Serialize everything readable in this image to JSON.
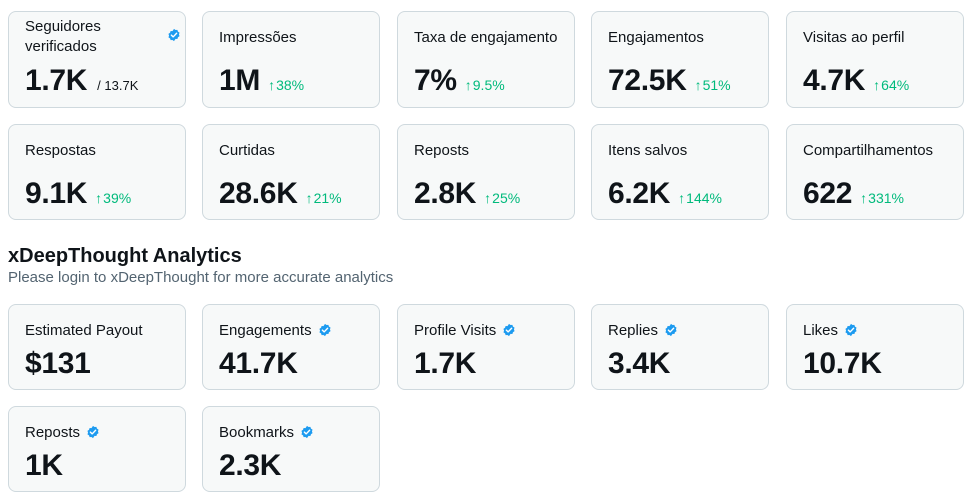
{
  "metrics_row1": [
    {
      "label": "Seguidores verificados",
      "value": "1.7K",
      "total": "/ 13.7K"
    },
    {
      "label": "Impressões",
      "value": "1M",
      "delta": "38%"
    },
    {
      "label": "Taxa de engajamento",
      "value": "7%",
      "delta": "9.5%"
    },
    {
      "label": "Engajamentos",
      "value": "72.5K",
      "delta": "51%"
    },
    {
      "label": "Visitas ao perfil",
      "value": "4.7K",
      "delta": "64%"
    }
  ],
  "metrics_row2": [
    {
      "label": "Respostas",
      "value": "9.1K",
      "delta": "39%"
    },
    {
      "label": "Curtidas",
      "value": "28.6K",
      "delta": "21%"
    },
    {
      "label": "Reposts",
      "value": "2.8K",
      "delta": "25%"
    },
    {
      "label": "Itens salvos",
      "value": "6.2K",
      "delta": "144%"
    },
    {
      "label": "Compartilhamentos",
      "value": "622",
      "delta": "331%"
    }
  ],
  "section": {
    "title": "xDeepThought Analytics",
    "subtitle": "Please login to xDeepThought for more accurate analytics"
  },
  "metrics_row3": [
    {
      "label": "Estimated Payout",
      "value": "$131"
    },
    {
      "label": "Engagements",
      "value": "41.7K"
    },
    {
      "label": "Profile Visits",
      "value": "1.7K"
    },
    {
      "label": "Replies",
      "value": "3.4K"
    },
    {
      "label": "Likes",
      "value": "10.7K"
    }
  ],
  "metrics_row4": [
    {
      "label": "Reposts",
      "value": "1K"
    },
    {
      "label": "Bookmarks",
      "value": "2.3K"
    }
  ],
  "arrow_glyph": "↑",
  "colors": {
    "positive": "#00ba7c",
    "verified": "#1d9bf0",
    "card_bg": "#f7f9f9",
    "border": "#cfd9de"
  },
  "icons": {
    "verified": "verified-badge-icon",
    "trend": "arrow-up-icon"
  }
}
